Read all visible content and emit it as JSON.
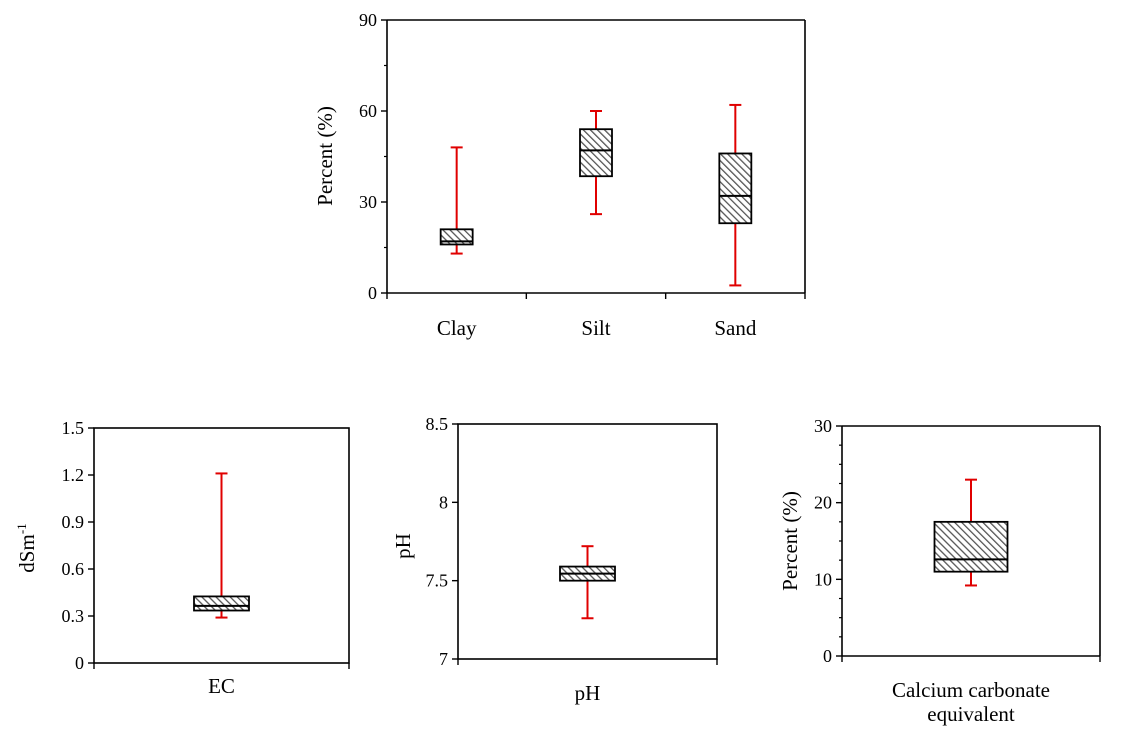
{
  "colors": {
    "box_fill": "#ffffff",
    "hatch": "#555555",
    "whisker": "#e00000",
    "axis": "#000000"
  },
  "chart_data": [
    {
      "type": "box",
      "ylabel": "Percent (%)",
      "ylim": [
        0,
        90
      ],
      "yticks": [
        "0",
        "30",
        "60",
        "90"
      ],
      "categories": [
        "Clay",
        "Silt",
        "Sand"
      ],
      "boxes": [
        {
          "min": 13,
          "q1": 16,
          "median": 17,
          "q3": 21,
          "max": 48
        },
        {
          "min": 26,
          "q1": 38.5,
          "median": 47,
          "q3": 54,
          "max": 60
        },
        {
          "min": 2.5,
          "q1": 23,
          "median": 32,
          "q3": 46,
          "max": 62
        }
      ],
      "grid": false,
      "legend": "none"
    },
    {
      "type": "box",
      "ylabel": "dSm",
      "ylabel_sup": "-1",
      "ylim": [
        0,
        1.5
      ],
      "yticks": [
        "0",
        "0.3",
        "0.6",
        "0.9",
        "1.2",
        "1.5"
      ],
      "categories": [
        "EC"
      ],
      "boxes": [
        {
          "min": 0.29,
          "q1": 0.335,
          "median": 0.365,
          "q3": 0.425,
          "max": 1.21
        }
      ],
      "grid": false,
      "legend": "none"
    },
    {
      "type": "box",
      "ylabel": "pH",
      "ylim": [
        7,
        8.5
      ],
      "yticks": [
        "7",
        "7.5",
        "8",
        "8.5"
      ],
      "categories": [
        "pH"
      ],
      "boxes": [
        {
          "min": 7.26,
          "q1": 7.5,
          "median": 7.545,
          "q3": 7.59,
          "max": 7.72
        }
      ],
      "grid": false,
      "legend": "none"
    },
    {
      "type": "box",
      "ylabel": "Percent (%)",
      "ylim": [
        0,
        30
      ],
      "yticks": [
        "0",
        "10",
        "20",
        "30"
      ],
      "categories": [
        "Calcium carbonate\nequivalent"
      ],
      "boxes": [
        {
          "min": 9.2,
          "q1": 11,
          "median": 12.6,
          "q3": 17.5,
          "max": 23
        }
      ],
      "grid": false,
      "legend": "none"
    }
  ]
}
